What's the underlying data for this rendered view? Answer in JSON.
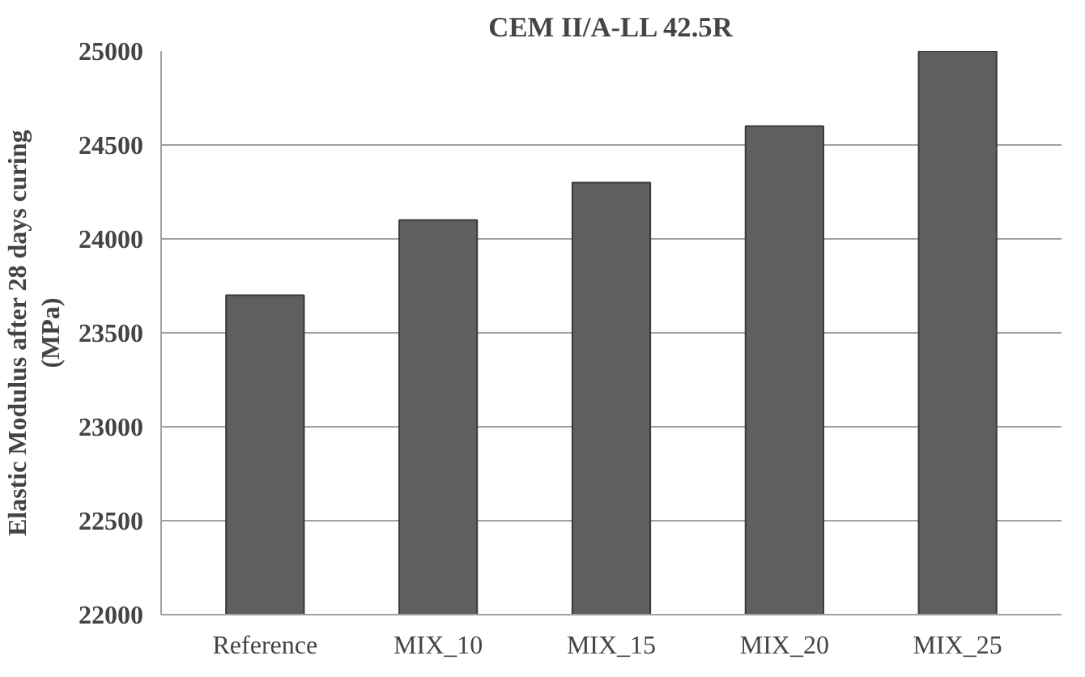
{
  "chart_data": {
    "type": "bar",
    "title": "CEM II/A-LL 42.5R",
    "ylabel": "Elastic Modulus after 28 days curing\n(MPa)",
    "categories": [
      "Reference",
      "MIX_10",
      "MIX_15",
      "MIX_20",
      "MIX_25"
    ],
    "values": [
      23700,
      24100,
      24300,
      24600,
      25000
    ],
    "color": "#5f5f5f",
    "ylim": [
      22000,
      25000
    ],
    "yticks": [
      22000,
      22500,
      23000,
      23500,
      24000,
      24500,
      25000
    ],
    "grid": "y"
  }
}
